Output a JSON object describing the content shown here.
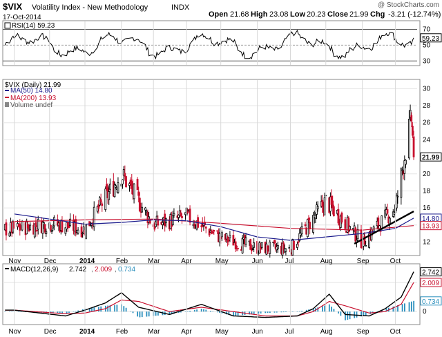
{
  "header": {
    "symbol": "$VIX",
    "name": "Volatility Index - New Methodology",
    "exchange": "INDX",
    "date": "17-Oct-2014",
    "copyright": "@ StockCharts.com",
    "open_label": "Open",
    "open": "21.68",
    "high_label": "High",
    "high": "23.08",
    "low_label": "Low",
    "low": "20.23",
    "close_label": "Close",
    "close": "21.99",
    "chg_label": "Chg",
    "chg": "-3.21 (-12.74%)"
  },
  "chart_data": [
    {
      "type": "line",
      "panel": "rsi",
      "title": "RSI(14) 59.23",
      "ylim": [
        25,
        80
      ],
      "ticks": [
        30,
        50,
        70
      ],
      "reference_lines": [
        30,
        50,
        70
      ],
      "last_value": 59.23,
      "last_label": "59.23",
      "x": [
        "2014-10-17"
      ],
      "values": [
        59.23
      ],
      "colors": {
        "line": "#000000"
      }
    },
    {
      "type": "line",
      "panel": "price",
      "title": "$VIX (Daily) 21.99",
      "ylim": [
        10.5,
        31
      ],
      "ticks": [
        12,
        14,
        16,
        18,
        20,
        22,
        24,
        26,
        28,
        30
      ],
      "x_labels": [
        "Nov",
        "Dec",
        "2014",
        "Feb",
        "Mar",
        "Apr",
        "May",
        "Jun",
        "Jul",
        "Aug",
        "Sep",
        "Oct"
      ],
      "legend": [
        {
          "label": "$VIX (Daily) 21.99",
          "color": "#000000"
        },
        {
          "label": "MA(50) 14.80",
          "color": "#1a1a8c"
        },
        {
          "label": "MA(200) 13.93",
          "color": "#c8102e"
        },
        {
          "label": "Volume undef",
          "color": "#888888"
        }
      ],
      "series": [
        {
          "name": "$VIX (Daily)",
          "x": [
            "2013-11-01",
            "2013-12-02",
            "2014-01-02",
            "2014-02-03",
            "2014-03-03",
            "2014-04-01",
            "2014-05-01",
            "2014-06-02",
            "2014-07-01",
            "2014-08-01",
            "2014-09-02",
            "2014-10-01",
            "2014-10-15",
            "2014-10-17"
          ],
          "values": [
            13.5,
            14.2,
            13.5,
            20.0,
            14.0,
            15.0,
            12.5,
            11.3,
            11.2,
            16.8,
            12.0,
            16.0,
            26.5,
            21.99
          ]
        },
        {
          "name": "MA(50)",
          "last": 14.8,
          "x": [
            "2013-11-01",
            "2014-01-02",
            "2014-02-03",
            "2014-03-03",
            "2014-04-01",
            "2014-05-01",
            "2014-06-02",
            "2014-07-01",
            "2014-08-01",
            "2014-09-02",
            "2014-10-01",
            "2014-10-17"
          ],
          "values": [
            15.3,
            14.1,
            14.3,
            14.6,
            14.5,
            13.8,
            12.6,
            12.2,
            12.6,
            13.0,
            13.6,
            14.8
          ]
        },
        {
          "name": "MA(200)",
          "last": 13.93,
          "x": [
            "2013-11-01",
            "2014-01-02",
            "2014-03-03",
            "2014-05-01",
            "2014-07-01",
            "2014-09-02",
            "2014-10-17"
          ],
          "values": [
            14.4,
            14.6,
            14.7,
            14.2,
            13.6,
            13.4,
            13.93
          ]
        }
      ],
      "trendline": {
        "x": [
          "2014-08-26",
          "2014-10-17"
        ],
        "values": [
          11.8,
          15.6
        ]
      },
      "last_labels": {
        "close": "21.99",
        "ma50": "14.80",
        "ma200": "13.93"
      },
      "colors": {
        "up": "#000000",
        "down": "#c8102e",
        "ma50": "#1a1a8c",
        "ma200": "#c8102e"
      }
    },
    {
      "type": "line",
      "panel": "macd",
      "title": "MACD(12,26,9)",
      "legend": [
        {
          "label": "MACD(12,26,9)",
          "color": "#000000",
          "value": "2.742"
        },
        {
          "label": "",
          "color": "#c8102e",
          "value": "2.009"
        },
        {
          "label": "",
          "color": "#2a8fbd",
          "value": "0.734"
        }
      ],
      "ylim": [
        -0.8,
        3.2
      ],
      "ticks": [
        0,
        2
      ],
      "x_labels": [
        "Nov",
        "Dec",
        "2014",
        "Feb",
        "Mar",
        "Apr",
        "May",
        "Jun",
        "Jul",
        "Aug",
        "Sep",
        "Oct"
      ],
      "series": [
        {
          "name": "MACD",
          "x": [
            "2013-11-01",
            "2013-12-16",
            "2014-01-02",
            "2014-01-20",
            "2014-02-03",
            "2014-02-18",
            "2014-03-17",
            "2014-04-14",
            "2014-05-12",
            "2014-06-09",
            "2014-07-07",
            "2014-07-21",
            "2014-08-04",
            "2014-08-18",
            "2014-09-08",
            "2014-09-22",
            "2014-10-06",
            "2014-10-17"
          ],
          "values": [
            0.1,
            -0.3,
            0.1,
            0.6,
            1.3,
            0.3,
            -0.2,
            0.5,
            -0.3,
            -0.4,
            -0.3,
            0.2,
            1.2,
            -0.2,
            -0.3,
            0.2,
            1.0,
            2.742
          ]
        },
        {
          "name": "Signal",
          "x": [
            "2013-11-01",
            "2013-12-16",
            "2014-01-02",
            "2014-01-20",
            "2014-02-03",
            "2014-02-18",
            "2014-03-17",
            "2014-04-14",
            "2014-05-12",
            "2014-06-09",
            "2014-07-07",
            "2014-07-21",
            "2014-08-04",
            "2014-08-18",
            "2014-09-08",
            "2014-09-22",
            "2014-10-06",
            "2014-10-17"
          ],
          "values": [
            0.1,
            -0.15,
            -0.1,
            0.2,
            0.8,
            0.7,
            0.0,
            0.3,
            0.0,
            -0.3,
            -0.3,
            0.0,
            0.7,
            0.4,
            -0.1,
            0.0,
            0.5,
            2.009
          ]
        },
        {
          "name": "Histogram",
          "x": [
            "2013-11-01",
            "2013-12-16",
            "2014-01-02",
            "2014-01-20",
            "2014-02-03",
            "2014-02-18",
            "2014-03-17",
            "2014-04-14",
            "2014-05-12",
            "2014-06-09",
            "2014-07-07",
            "2014-07-21",
            "2014-08-04",
            "2014-08-18",
            "2014-09-08",
            "2014-09-22",
            "2014-10-06",
            "2014-10-17"
          ],
          "values": [
            0.0,
            -0.15,
            0.2,
            0.4,
            0.5,
            -0.4,
            -0.2,
            0.2,
            -0.3,
            -0.1,
            0.0,
            0.2,
            0.5,
            -0.6,
            -0.2,
            0.2,
            0.5,
            0.734
          ]
        }
      ],
      "last_labels": {
        "macd": "2.742",
        "signal": "2.009",
        "hist": "0.734"
      },
      "colors": {
        "macd": "#000000",
        "signal": "#c8102e",
        "hist": "#2a8fbd"
      }
    }
  ]
}
